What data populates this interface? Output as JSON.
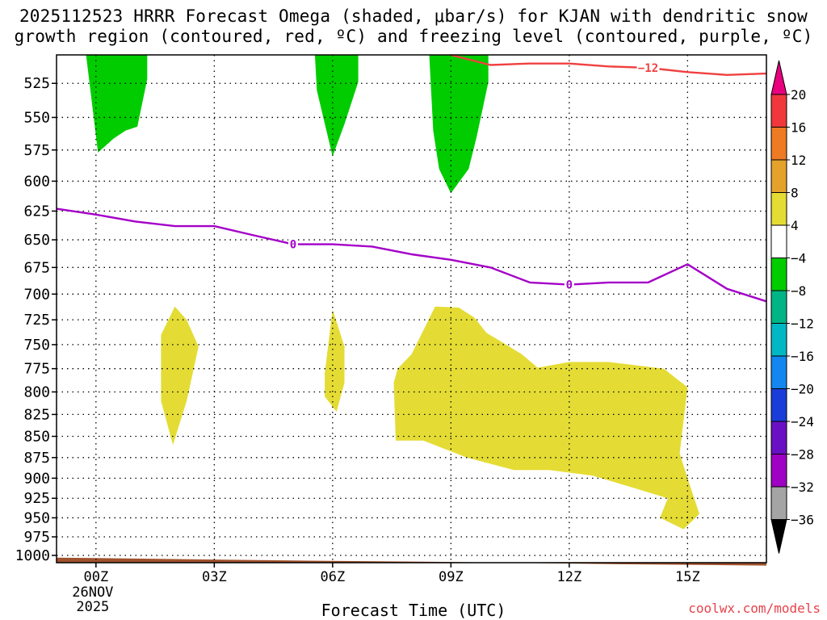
{
  "title": {
    "line1": "2025112523 HRRR Forecast Omega (shaded, μbar/s) for KJAN with dendritic snow",
    "line2": "growth region (contoured, red, ºC) and freezing level (contoured, purple, ºC)"
  },
  "credit": "coolwx.com/models",
  "chart_data": {
    "type": "time-height contour",
    "title": "2025112523 HRRR Forecast Omega (shaded, μbar/s) for KJAN with dendritic snow growth region (contoured, red, ºC) and freezing level (contoured, purple, ºC)",
    "xlabel": "Forecast Time (UTC)",
    "ylabel": "",
    "x_unit": "hours",
    "xlim": [
      -1,
      17
    ],
    "ylim": [
      1010,
      505
    ],
    "y_scale": "log pressure (hPa), reversed",
    "grid": true,
    "y_ticks": [
      525,
      550,
      575,
      600,
      625,
      650,
      675,
      700,
      725,
      750,
      775,
      800,
      825,
      850,
      875,
      900,
      925,
      950,
      975,
      1000
    ],
    "x_ticks": [
      {
        "x": 0,
        "label": "00Z",
        "sub": [
          "26NOV",
          "2025"
        ]
      },
      {
        "x": 3,
        "label": "03Z",
        "sub": []
      },
      {
        "x": 6,
        "label": "06Z",
        "sub": []
      },
      {
        "x": 9,
        "label": "09Z",
        "sub": []
      },
      {
        "x": 12,
        "label": "12Z",
        "sub": []
      },
      {
        "x": 15,
        "label": "15Z",
        "sub": []
      }
    ],
    "colorbar": {
      "labels": [
        "20",
        "16",
        "12",
        "8",
        "4",
        "−4",
        "−8",
        "−12",
        "−16",
        "−20",
        "−24",
        "−28",
        "−32",
        "−36"
      ],
      "colors": [
        "#e8007e",
        "#f0383c",
        "#ee7a24",
        "#e4a22c",
        "#e4dc34",
        "#ffffff",
        "#00cc00",
        "#00b486",
        "#00b8c4",
        "#1486f0",
        "#1a3cd8",
        "#6a10c4",
        "#9e00c4",
        "#a4a4a4",
        "#000000"
      ]
    },
    "shaded_regions": [
      {
        "category": "−4 to −8",
        "color": "#00cc00",
        "outline": [
          [
            -0.25,
            505
          ],
          [
            1.3,
            505
          ],
          [
            1.3,
            522
          ],
          [
            1.05,
            557
          ],
          [
            0.75,
            560
          ],
          [
            0.45,
            566
          ],
          [
            0.05,
            577
          ],
          [
            -0.25,
            505
          ]
        ]
      },
      {
        "category": "−4 to −8",
        "color": "#00cc00",
        "outline": [
          [
            5.55,
            505
          ],
          [
            6.65,
            505
          ],
          [
            6.65,
            524
          ],
          [
            6.3,
            555
          ],
          [
            6.0,
            580
          ],
          [
            5.6,
            530
          ],
          [
            5.55,
            505
          ]
        ]
      },
      {
        "category": "−4 to −8",
        "color": "#00cc00",
        "outline": [
          [
            8.45,
            505
          ],
          [
            9.95,
            505
          ],
          [
            9.95,
            524
          ],
          [
            9.65,
            565
          ],
          [
            9.45,
            590
          ],
          [
            9.0,
            610
          ],
          [
            8.7,
            590
          ],
          [
            8.55,
            560
          ],
          [
            8.45,
            505
          ]
        ]
      },
      {
        "category": "4 to 8",
        "color": "#e4dc34",
        "outline": [
          [
            2.0,
            712
          ],
          [
            2.3,
            725
          ],
          [
            2.6,
            752
          ],
          [
            2.3,
            810
          ],
          [
            1.95,
            860
          ],
          [
            1.65,
            810
          ],
          [
            1.65,
            740
          ],
          [
            2.0,
            712
          ]
        ]
      },
      {
        "category": "4 to 8",
        "color": "#e4dc34",
        "outline": [
          [
            6.0,
            715
          ],
          [
            6.3,
            752
          ],
          [
            6.3,
            790
          ],
          [
            6.1,
            822
          ],
          [
            5.8,
            805
          ],
          [
            5.8,
            780
          ],
          [
            6.0,
            715
          ]
        ]
      },
      {
        "category": "4 to 8",
        "color": "#e4dc34",
        "outline": [
          [
            8.6,
            712
          ],
          [
            9.2,
            713
          ],
          [
            9.6,
            723
          ],
          [
            9.9,
            738
          ],
          [
            10.4,
            750
          ],
          [
            10.8,
            760
          ],
          [
            11.2,
            774
          ],
          [
            12.0,
            768
          ],
          [
            13.0,
            768
          ],
          [
            14.4,
            775
          ],
          [
            15.0,
            795
          ],
          [
            14.8,
            870
          ],
          [
            15.0,
            900
          ],
          [
            15.3,
            945
          ],
          [
            14.9,
            965
          ],
          [
            14.3,
            950
          ],
          [
            14.5,
            925
          ],
          [
            13.5,
            910
          ],
          [
            12.6,
            897
          ],
          [
            11.5,
            890
          ],
          [
            10.6,
            890
          ],
          [
            9.4,
            875
          ],
          [
            8.3,
            855
          ],
          [
            7.6,
            855
          ],
          [
            7.55,
            790
          ],
          [
            7.65,
            775
          ],
          [
            8.0,
            760
          ],
          [
            8.6,
            712
          ]
        ]
      }
    ],
    "series": [
      {
        "name": "",
        "contour_label": "0",
        "color": "#a400c8",
        "x": [
          -1,
          0,
          1,
          2,
          3,
          4,
          5,
          6,
          7,
          8,
          9,
          10,
          11,
          12,
          13,
          14,
          15,
          16,
          17
        ],
        "y": [
          623,
          628,
          634,
          638,
          638,
          646,
          654,
          654,
          656,
          663,
          668,
          675,
          689,
          691,
          689,
          689,
          672,
          695,
          707
        ],
        "label_at": [
          [
            5.0,
            654
          ],
          [
            12.0,
            691
          ]
        ]
      },
      {
        "name": "",
        "contour_label": "−12",
        "color": "#f04040",
        "x": [
          9.0,
          10.0,
          11.0,
          12.0,
          13.0,
          14.0,
          15.0,
          16.0,
          17.0
        ],
        "y": [
          505,
          512,
          511,
          511,
          513,
          514,
          517,
          519,
          518
        ],
        "label_at": [
          [
            14.0,
            514
          ]
        ]
      }
    ],
    "surface": {
      "color": "#a0522d",
      "x": [
        -1,
        2,
        5,
        9,
        13,
        17
      ],
      "y": [
        1003,
        1005,
        1007,
        1009,
        1012,
        1014
      ]
    }
  }
}
